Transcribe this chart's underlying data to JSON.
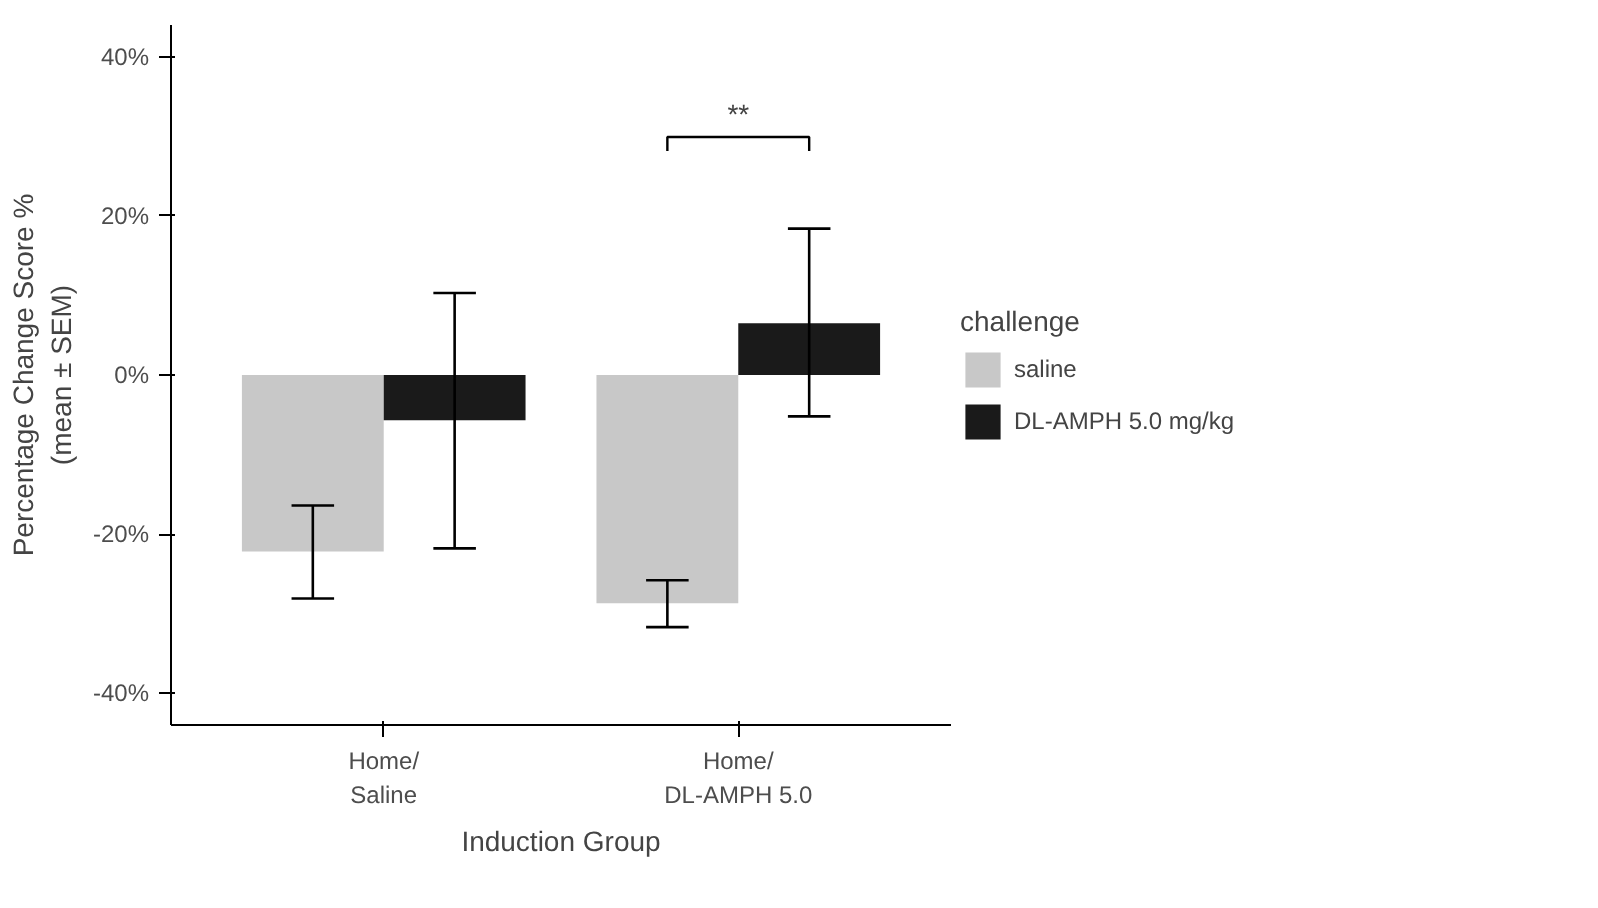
{
  "chart_data": {
    "type": "bar",
    "categories": [
      "Home/\nSaline",
      "Home/\nDL-AMPH 5.0"
    ],
    "xlabel": "Induction Group",
    "ylabel": "Percentage Change Score %\n(mean ± SEM)",
    "legend_title": "challenge",
    "series": [
      {
        "name": "saline",
        "color": "#c8c8c8",
        "values": [
          -22.2,
          -28.7
        ],
        "errors": [
          [
            -28.1,
            -16.4
          ],
          [
            -31.7,
            -25.8
          ]
        ]
      },
      {
        "name": "DL-AMPH 5.0 mg/kg",
        "color": "#1a1a1a",
        "values": [
          -5.7,
          6.5
        ],
        "errors": [
          [
            -21.8,
            10.3
          ],
          [
            -5.2,
            18.4
          ]
        ]
      }
    ],
    "ylim": [
      -44,
      44
    ],
    "yticks": [
      {
        "value": -40,
        "label": "-40%"
      },
      {
        "value": -20,
        "label": "-20%"
      },
      {
        "value": 0,
        "label": "0%"
      },
      {
        "value": 20,
        "label": "20%"
      },
      {
        "value": 40,
        "label": "40%"
      }
    ],
    "annotations": [
      "**"
    ],
    "grid": false,
    "legend": "right"
  }
}
